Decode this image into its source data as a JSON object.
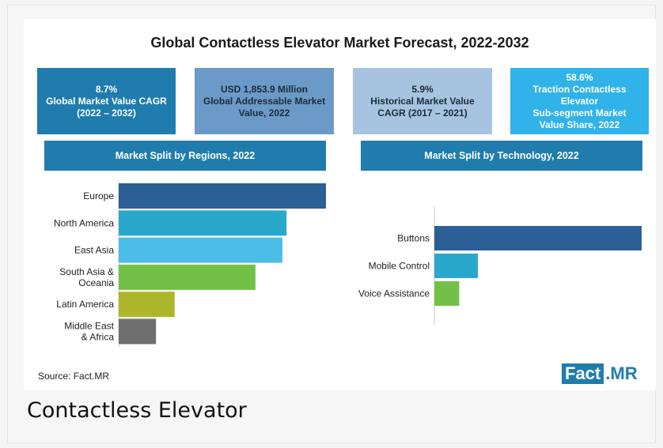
{
  "title": "Global Contactless Elevator Market Forecast, 2022-2032",
  "stats": [
    {
      "lines": [
        "8.7%",
        "Global Market Value CAGR",
        "(2022 – 2032)"
      ],
      "bg": "#1f7cad",
      "color": "#ffffff"
    },
    {
      "lines": [
        "USD 1,853.9 Million",
        "Global Addressable Market",
        "Value, 2022"
      ],
      "bg": "#6b9ac9",
      "color": "#1c2b3a"
    },
    {
      "lines": [
        "5.9%",
        "Historical Market Value",
        "CAGR (2017 – 2021)"
      ],
      "bg": "#a6c4df",
      "color": "#1c2b3a"
    },
    {
      "lines": [
        "58.6%",
        "Traction Contactless Elevator",
        "Sub-segment Market",
        "Value Share, 2022"
      ],
      "bg": "#2fb3e8",
      "color": "#ffffff"
    }
  ],
  "regions_header": "Market Split by Regions, 2022",
  "tech_header": "Market Split by Technology, 2022",
  "chart_data": [
    {
      "type": "bar",
      "orientation": "horizontal",
      "title": "Market Split by Regions, 2022",
      "categories": [
        [
          "Europe"
        ],
        [
          "North America"
        ],
        [
          "East Asia"
        ],
        [
          "South Asia &",
          "Oceania"
        ],
        [
          "Latin America"
        ],
        [
          "Middle East",
          "& Africa"
        ]
      ],
      "values": [
        100,
        81,
        79,
        66,
        27,
        18
      ],
      "value_unit": "relative bar length (% of largest bar, estimated; no axis or data labels shown)",
      "colors": [
        "#2b5f95",
        "#2aa8cc",
        "#4cbde6",
        "#72c048",
        "#adb52a",
        "#6f6f6f"
      ]
    },
    {
      "type": "bar",
      "orientation": "horizontal",
      "title": "Market Split by Technology, 2022",
      "categories": [
        [
          "Buttons"
        ],
        [
          "Mobile Control"
        ],
        [
          "Voice Assistance"
        ]
      ],
      "values": [
        100,
        21,
        12
      ],
      "value_unit": "relative bar length (% of largest bar, estimated; no axis or data labels shown)",
      "colors": [
        "#2b5f95",
        "#2aa8cc",
        "#72c048"
      ]
    }
  ],
  "source": "Source: Fact.MR",
  "logo": {
    "part1": "Fact",
    "part2": ".MR"
  },
  "caption": "Contactless Elevator"
}
